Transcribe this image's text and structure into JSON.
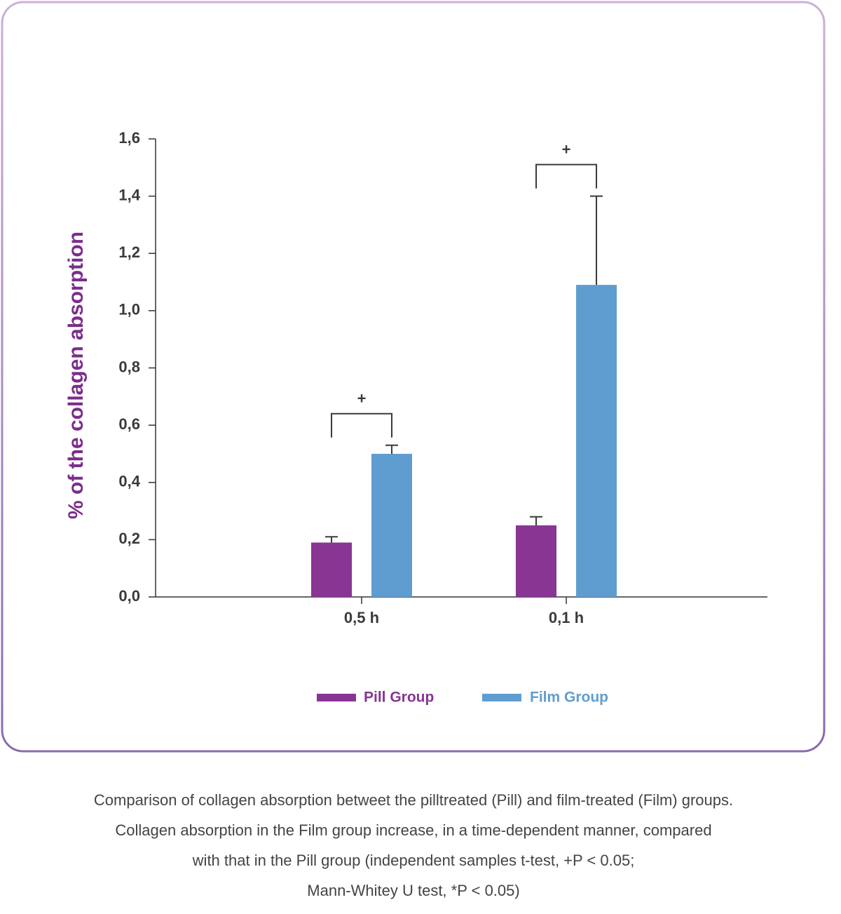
{
  "chart_data": {
    "type": "bar",
    "y_label": "% of the collagen absorption",
    "categories": [
      "0,5 h",
      "0,1 h"
    ],
    "series": [
      {
        "name": "Pill Group",
        "color": "#883594",
        "values": [
          0.19,
          0.25
        ],
        "errors": [
          0.02,
          0.03
        ]
      },
      {
        "name": "Film Group",
        "color": "#5f9dd0",
        "values": [
          0.5,
          1.09
        ],
        "errors": [
          0.03,
          0.31
        ]
      }
    ],
    "ylim": [
      0,
      1.6
    ],
    "yticks": [
      {
        "value": 0,
        "label": "0,0"
      },
      {
        "value": 0.2,
        "label": "0,2"
      },
      {
        "value": 0.4,
        "label": "0,4"
      },
      {
        "value": 0.6,
        "label": "0,6"
      },
      {
        "value": 0.8,
        "label": "0,8"
      },
      {
        "value": 1.0,
        "label": "1,0"
      },
      {
        "value": 1.2,
        "label": "1,2"
      },
      {
        "value": 1.4,
        "label": "1,4"
      },
      {
        "value": 1.6,
        "label": "1,6"
      }
    ],
    "annotations": [
      "+",
      "+"
    ],
    "caption": [
      "Comparison of collagen absorption betweet the pilltreated (Pill) and film-treated (Film) groups.",
      "Collagen absorption in the Film group increase, in a time-dependent manner, compared",
      "with that in the Pill group (independent samples t-test, +P < 0.05;",
      "Mann-Whitey U test, *P < 0.05)"
    ]
  }
}
